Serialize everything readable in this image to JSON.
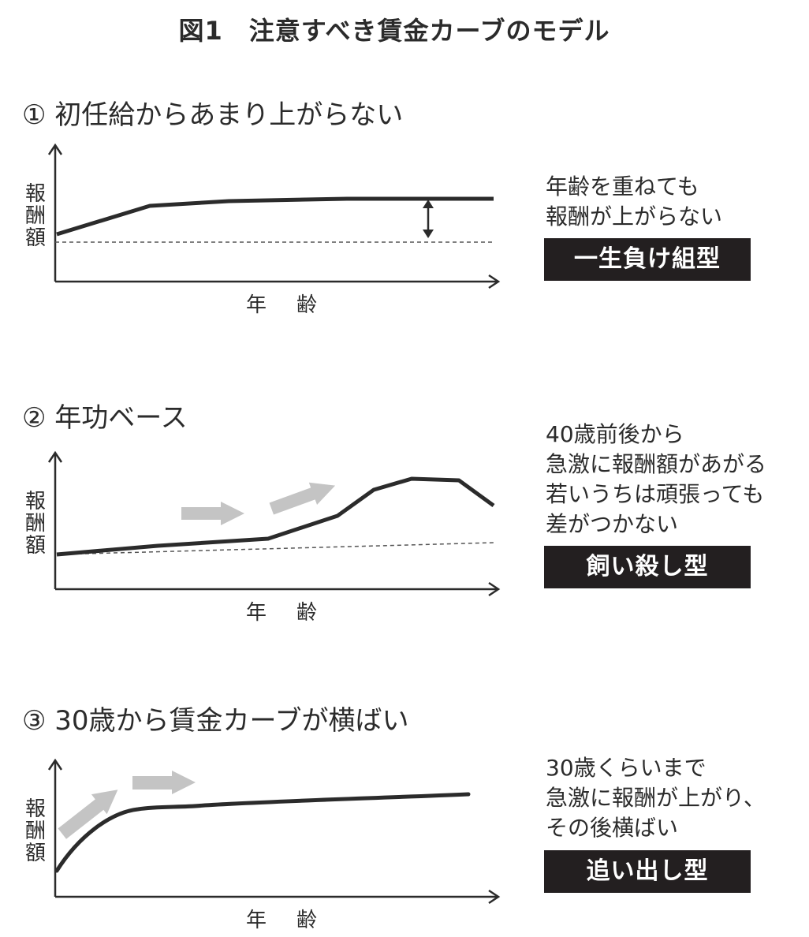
{
  "title": "図1　注意すべき賃金カーブのモデル",
  "panels": [
    {
      "heading": "① 初任給からあまり上がらない",
      "y_label": [
        "報",
        "酬",
        "額"
      ],
      "x_label": "年　齢",
      "description": [
        "年齢を重ねても",
        "報酬が上がらない"
      ],
      "tag": "一生負け組型"
    },
    {
      "heading": "② 年功ベース",
      "y_label": [
        "報",
        "酬",
        "額"
      ],
      "x_label": "年　齢",
      "description": [
        "40歳前後から",
        "急激に報酬額があがる",
        "若いうちは頑張っても",
        "差がつかない"
      ],
      "tag": "飼い殺し型"
    },
    {
      "heading": "③ 30歳から賃金カーブが横ばい",
      "y_label": [
        "報",
        "酬",
        "額"
      ],
      "x_label": "年　齢",
      "description": [
        "30歳くらいまで",
        "急激に報酬が上がり、",
        "その後横ばい"
      ],
      "tag": "追い出し型"
    }
  ],
  "colors": {
    "curve": "#2b2b2b",
    "axis": "#2b2b2b",
    "baseline_dashed": "#555555",
    "arrow_gray": "#c4c4c4",
    "tag_bg": "#231f20",
    "tag_text": "#ffffff"
  }
}
